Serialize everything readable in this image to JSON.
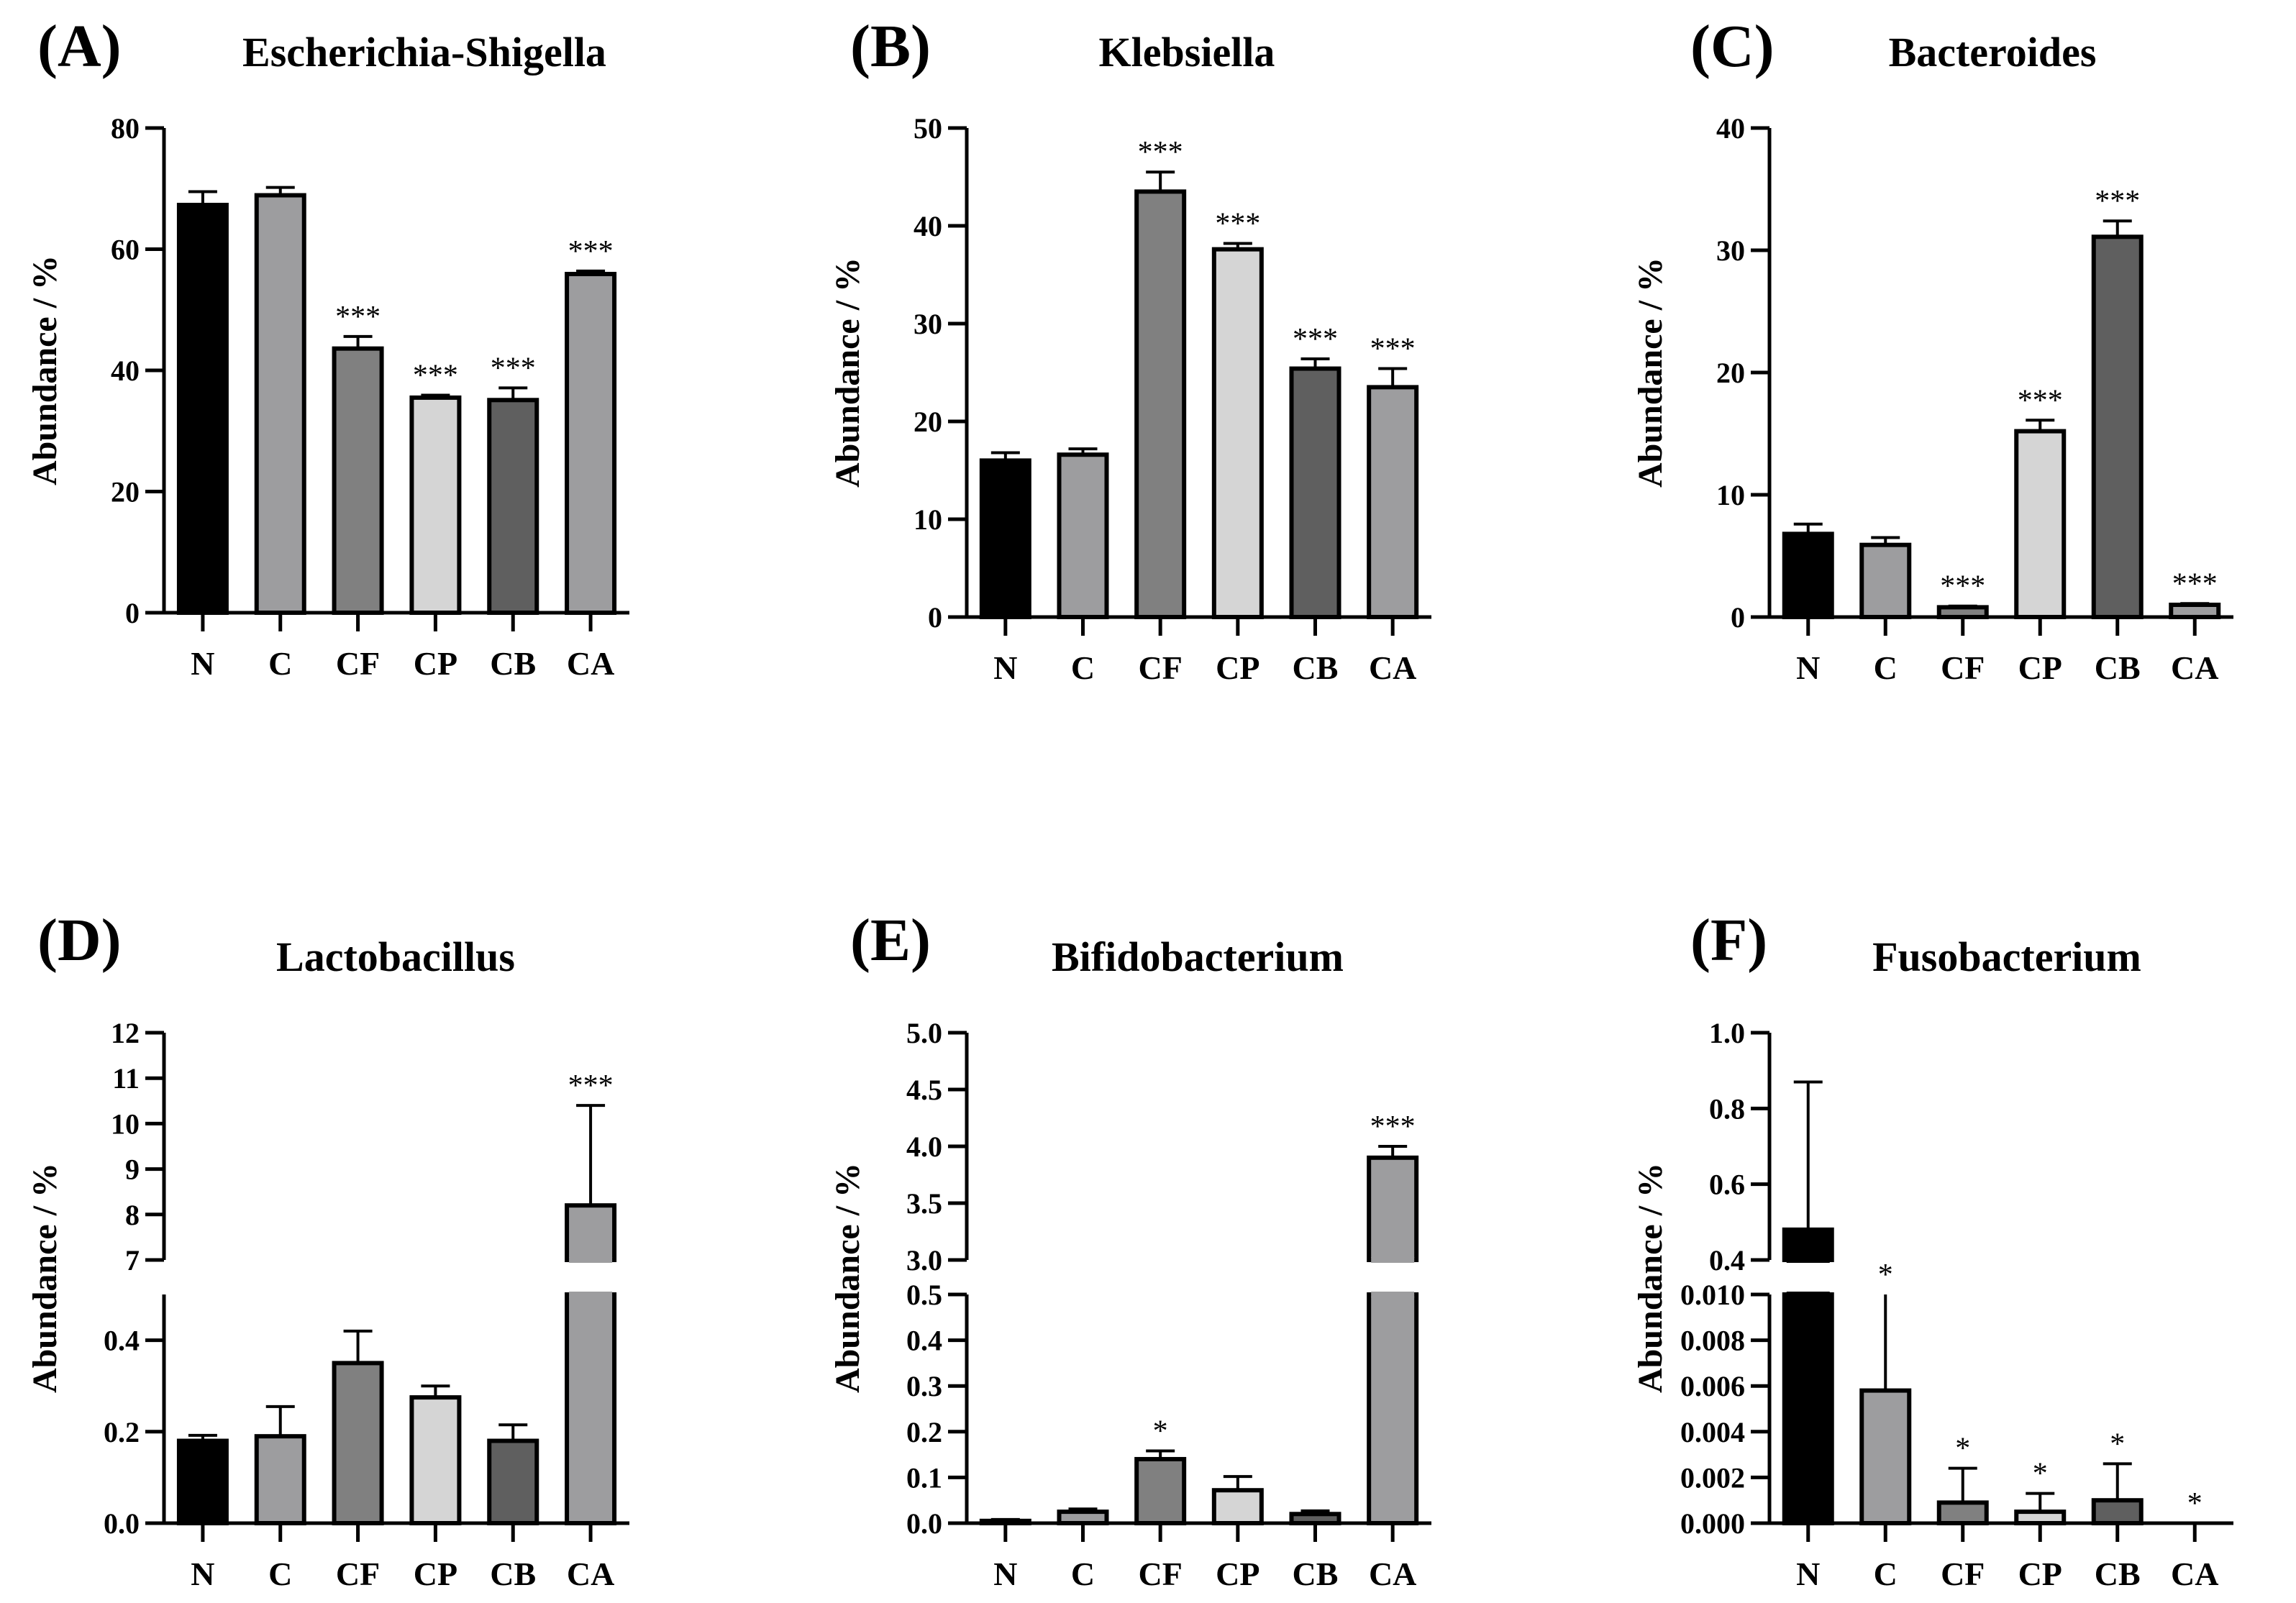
{
  "chart_data": [
    {
      "type": "bar",
      "panel_label": "(A)",
      "title": "Escherichia-Shigella",
      "ylabel": "Abundance / %",
      "categories": [
        "N",
        "C",
        "CF",
        "CP",
        "CB",
        "CA"
      ],
      "values": [
        67.3,
        68.9,
        43.6,
        35.5,
        35.1,
        55.9
      ],
      "errors": [
        2.2,
        1.3,
        2.0,
        0.4,
        2.0,
        0.5
      ],
      "significance": [
        "",
        "",
        "***",
        "***",
        "***",
        "***"
      ],
      "ylim": [
        0,
        80
      ],
      "yticks": [
        0,
        20,
        40,
        60,
        80
      ],
      "tick_labels": [
        "0",
        "20",
        "40",
        "60",
        "80"
      ]
    },
    {
      "type": "bar",
      "panel_label": "(B)",
      "title": "Klebsiella",
      "ylabel": "Abundance / %",
      "categories": [
        "N",
        "C",
        "CF",
        "CP",
        "CB",
        "CA"
      ],
      "values": [
        16.0,
        16.6,
        43.5,
        37.6,
        25.4,
        23.5
      ],
      "errors": [
        0.8,
        0.6,
        2.0,
        0.6,
        1.0,
        1.9
      ],
      "significance": [
        "",
        "",
        "***",
        "***",
        "***",
        "***"
      ],
      "ylim": [
        0,
        50
      ],
      "yticks": [
        0,
        10,
        20,
        30,
        40,
        50
      ],
      "tick_labels": [
        "0",
        "10",
        "20",
        "30",
        "40",
        "50"
      ]
    },
    {
      "type": "bar",
      "panel_label": "(C)",
      "title": "Bacteroides",
      "ylabel": "Abundance / %",
      "categories": [
        "N",
        "C",
        "CF",
        "CP",
        "CB",
        "CA"
      ],
      "values": [
        6.8,
        5.9,
        0.8,
        15.2,
        31.1,
        1.0
      ],
      "errors": [
        0.8,
        0.6,
        0.1,
        0.9,
        1.3,
        0.1
      ],
      "significance": [
        "",
        "",
        "***",
        "***",
        "***",
        "***"
      ],
      "ylim": [
        0,
        40
      ],
      "yticks": [
        0,
        10,
        20,
        30,
        40
      ],
      "tick_labels": [
        "0",
        "10",
        "20",
        "30",
        "40"
      ]
    },
    {
      "type": "bar",
      "panel_label": "(D)",
      "title": "Lactobacillus",
      "ylabel": "Abundance / %",
      "categories": [
        "N",
        "C",
        "CF",
        "CP",
        "CB",
        "CA"
      ],
      "values": [
        0.18,
        0.19,
        0.35,
        0.275,
        0.18,
        8.2
      ],
      "errors": [
        0.012,
        0.065,
        0.07,
        0.025,
        0.035,
        2.2
      ],
      "significance": [
        "",
        "",
        "",
        "",
        "",
        "***"
      ],
      "axis_break": {
        "lower": [
          0,
          0.5
        ],
        "upper": [
          7,
          12
        ]
      },
      "lower_ticks": [
        0.0,
        0.2,
        0.4
      ],
      "lower_tick_labels": [
        "0.0",
        "0.2",
        "0.4"
      ],
      "upper_ticks": [
        7,
        8,
        9,
        10,
        11,
        12
      ],
      "upper_tick_labels": [
        "7",
        "8",
        "9",
        "10",
        "11",
        "12"
      ]
    },
    {
      "type": "bar",
      "panel_label": "(E)",
      "title": "Bifidobacterium",
      "ylabel": "Abundance / %",
      "categories": [
        "N",
        "C",
        "CF",
        "CP",
        "CB",
        "CA"
      ],
      "values": [
        0.005,
        0.025,
        0.14,
        0.072,
        0.02,
        3.9
      ],
      "errors": [
        0.003,
        0.006,
        0.018,
        0.03,
        0.007,
        0.1
      ],
      "significance": [
        "",
        "",
        "*",
        "",
        "",
        "***"
      ],
      "axis_break": {
        "lower": [
          0,
          0.5
        ],
        "upper": [
          3.0,
          5.0
        ]
      },
      "lower_ticks": [
        0.0,
        0.1,
        0.2,
        0.3,
        0.4,
        0.5
      ],
      "lower_tick_labels": [
        "0.0",
        "0.1",
        "0.2",
        "0.3",
        "0.4",
        "0.5"
      ],
      "upper_ticks": [
        3.0,
        3.5,
        4.0,
        4.5,
        5.0
      ],
      "upper_tick_labels": [
        "3.0",
        "3.5",
        "4.0",
        "4.5",
        "5.0"
      ]
    },
    {
      "type": "bar",
      "panel_label": "(F)",
      "title": "Fusobacterium",
      "ylabel": "Abundance / %",
      "categories": [
        "N",
        "C",
        "CF",
        "CP",
        "CB",
        "CA"
      ],
      "values": [
        0.48,
        0.0058,
        0.0009,
        0.0005,
        0.001,
        0.0
      ],
      "errors": [
        0.39,
        0.0045,
        0.0015,
        0.0008,
        0.0016,
        0.0
      ],
      "significance": [
        "",
        "*",
        "*",
        "*",
        "*",
        "*"
      ],
      "axis_break": {
        "lower": [
          0,
          0.01
        ],
        "upper": [
          0.4,
          1.0
        ]
      },
      "lower_ticks": [
        0.0,
        0.002,
        0.004,
        0.006,
        0.008,
        0.01
      ],
      "lower_tick_labels": [
        "0.000",
        "0.002",
        "0.004",
        "0.006",
        "0.008",
        "0.010"
      ],
      "upper_ticks": [
        0.4,
        0.6,
        0.8,
        1.0
      ],
      "upper_tick_labels": [
        "0.4",
        "0.6",
        "0.8",
        "1.0"
      ]
    }
  ],
  "colors": {
    "N": "#000000",
    "C": "#9d9d9f",
    "CF": "#808080",
    "CP": "#d5d5d5",
    "CB": "#5f5f5f",
    "CA": "#9d9d9f",
    "stroke": "#000000"
  }
}
